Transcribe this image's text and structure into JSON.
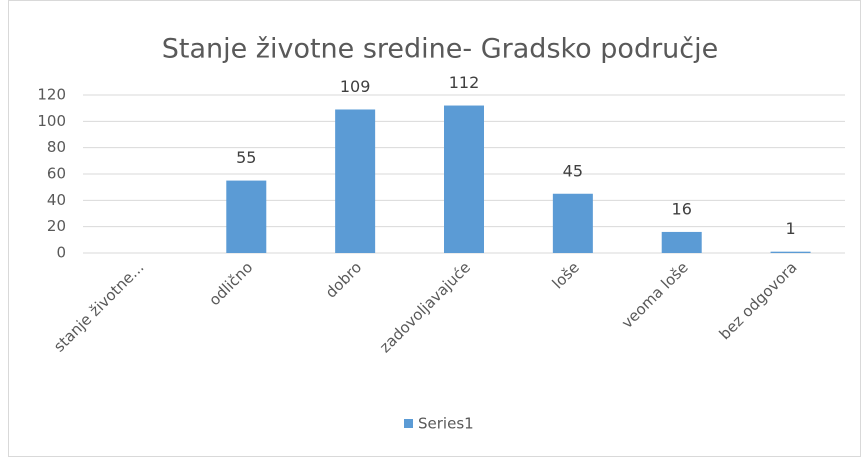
{
  "chart_data": {
    "type": "bar",
    "title": "Stanje životne sredine- Gradsko područje",
    "categories": [
      "stanje životne...",
      "odlično",
      "dobro",
      "zadovoljavajuće",
      "loše",
      "veoma loše",
      "bez odgovora"
    ],
    "series": [
      {
        "name": "Series1",
        "color": "#5b9bd5",
        "values": [
          null,
          55,
          109,
          112,
          45,
          16,
          1
        ]
      }
    ],
    "ylim": [
      0,
      120
    ],
    "yticks": [
      0,
      20,
      40,
      60,
      80,
      100,
      120
    ],
    "grid": true,
    "legend": "bottom"
  }
}
